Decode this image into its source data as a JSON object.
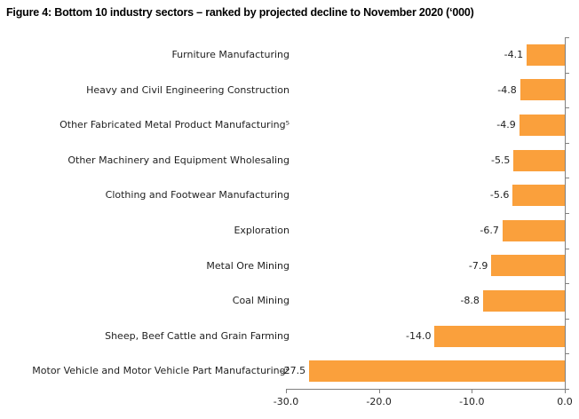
{
  "chart_data": {
    "type": "bar",
    "orientation": "horizontal",
    "title": "Figure 4: Bottom 10 industry sectors – ranked by projected decline to November 2020 (‘000)",
    "categories": [
      "Furniture Manufacturing",
      "Heavy and Civil Engineering Construction",
      "Other Fabricated Metal Product Manufacturing⁵",
      "Other Machinery and Equipment Wholesaling",
      "Clothing and Footwear Manufacturing",
      "Exploration",
      "Metal Ore Mining",
      "Coal Mining",
      "Sheep, Beef Cattle and Grain Farming",
      "Motor Vehicle and Motor Vehicle Part Manufacturing⁴"
    ],
    "values": [
      -4.1,
      -4.8,
      -4.9,
      -5.5,
      -5.6,
      -6.7,
      -7.9,
      -8.8,
      -14.0,
      -27.5
    ],
    "data_labels": [
      "-4.1",
      "-4.8",
      "-4.9",
      "-5.5",
      "-5.6",
      "-6.7",
      "-7.9",
      "-8.8",
      "-14.0",
      "-27.5"
    ],
    "xlabel": "",
    "ylabel": "",
    "xlim": [
      -30,
      0
    ],
    "x_ticks": [
      "-30.0",
      "-20.0",
      "-10.0",
      "0.0"
    ],
    "x_tick_values": [
      -30,
      -20,
      -10,
      0
    ],
    "grid": false,
    "legend": "none",
    "bar_color": "#FAA03C",
    "axis_color": "#808080",
    "text_color": "#1f1f1f"
  }
}
